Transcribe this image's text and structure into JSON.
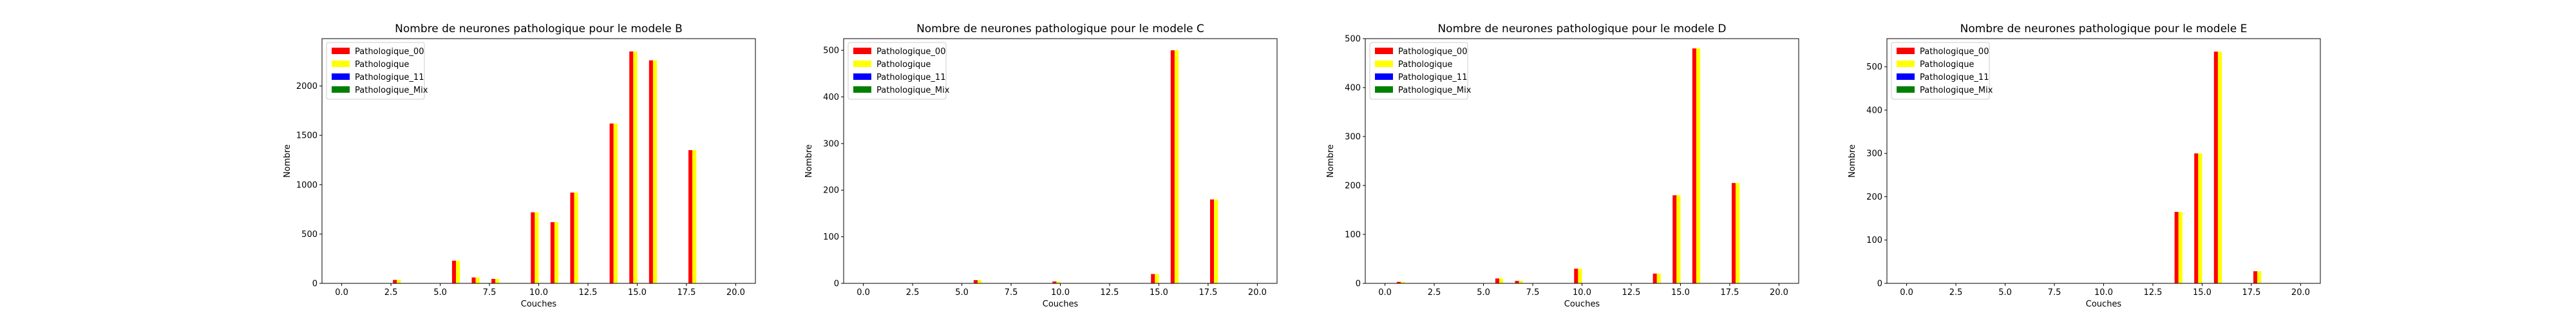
{
  "chart_data": [
    {
      "type": "bar",
      "title": "Nombre de neurones pathologique pour le modele B",
      "xlabel": "Couches",
      "ylabel": "Nombre",
      "xlim": [
        -1,
        21
      ],
      "ylim": [
        0,
        2480
      ],
      "xticks": [
        0,
        2.5,
        5,
        7.5,
        10,
        12.5,
        15,
        17.5,
        20
      ],
      "xtick_labels": [
        "0.0",
        "2.5",
        "5.0",
        "7.5",
        "10.0",
        "12.5",
        "15.0",
        "17.5",
        "20.0"
      ],
      "yticks": [
        0,
        500,
        1000,
        1500,
        2000
      ],
      "ytick_labels": [
        "0",
        "500",
        "1000",
        "1500",
        "2000"
      ],
      "legend_position": "top-left",
      "grid": false,
      "x": [
        0,
        1,
        2,
        3,
        4,
        5,
        6,
        7,
        8,
        9,
        10,
        11,
        12,
        13,
        14,
        15,
        16,
        17,
        18
      ],
      "series": [
        {
          "name": "Pathologique_00",
          "color": "#ff0000",
          "values": [
            0,
            0,
            0,
            35,
            0,
            0,
            230,
            60,
            45,
            0,
            720,
            620,
            920,
            0,
            1620,
            2350,
            2260,
            0,
            1350
          ]
        },
        {
          "name": "Pathologique",
          "color": "#ffff00",
          "values": [
            0,
            0,
            0,
            35,
            0,
            0,
            230,
            60,
            45,
            0,
            720,
            620,
            920,
            0,
            1620,
            2350,
            2260,
            0,
            1350
          ]
        },
        {
          "name": "Pathologique_11",
          "color": "#0000ff",
          "values": [
            0,
            0,
            0,
            0,
            0,
            0,
            0,
            0,
            0,
            0,
            0,
            0,
            0,
            0,
            0,
            0,
            0,
            0,
            0
          ]
        },
        {
          "name": "Pathologique_Mix",
          "color": "#008000",
          "values": [
            0,
            0,
            0,
            0,
            0,
            0,
            0,
            0,
            0,
            0,
            0,
            0,
            0,
            0,
            0,
            0,
            0,
            0,
            0
          ]
        }
      ]
    },
    {
      "type": "bar",
      "title": "Nombre de neurones pathologique pour le modele C",
      "xlabel": "Couches",
      "ylabel": "Nombre",
      "xlim": [
        -1,
        21
      ],
      "ylim": [
        0,
        525
      ],
      "xticks": [
        0,
        2.5,
        5,
        7.5,
        10,
        12.5,
        15,
        17.5,
        20
      ],
      "xtick_labels": [
        "0.0",
        "2.5",
        "5.0",
        "7.5",
        "10.0",
        "12.5",
        "15.0",
        "17.5",
        "20.0"
      ],
      "yticks": [
        0,
        100,
        200,
        300,
        400,
        500
      ],
      "ytick_labels": [
        "0",
        "100",
        "200",
        "300",
        "400",
        "500"
      ],
      "legend_position": "top-left",
      "grid": false,
      "x": [
        0,
        1,
        2,
        3,
        4,
        5,
        6,
        7,
        8,
        9,
        10,
        11,
        12,
        13,
        14,
        15,
        16,
        17,
        18
      ],
      "series": [
        {
          "name": "Pathologique_00",
          "color": "#ff0000",
          "values": [
            0,
            0,
            0,
            0,
            0,
            0,
            7,
            0,
            0,
            0,
            4,
            0,
            0,
            0,
            0,
            20,
            500,
            0,
            180
          ]
        },
        {
          "name": "Pathologique",
          "color": "#ffff00",
          "values": [
            0,
            0,
            0,
            0,
            0,
            0,
            7,
            0,
            0,
            0,
            4,
            0,
            0,
            0,
            0,
            20,
            500,
            0,
            180
          ]
        },
        {
          "name": "Pathologique_11",
          "color": "#0000ff",
          "values": [
            0,
            0,
            0,
            0,
            0,
            0,
            0,
            0,
            0,
            0,
            0,
            0,
            0,
            0,
            0,
            0,
            0,
            0,
            0
          ]
        },
        {
          "name": "Pathologique_Mix",
          "color": "#008000",
          "values": [
            0,
            0,
            0,
            0,
            0,
            0,
            0,
            0,
            0,
            0,
            0,
            0,
            0,
            0,
            0,
            0,
            0,
            0,
            0
          ]
        }
      ]
    },
    {
      "type": "bar",
      "title": "Nombre de neurones pathologique pour le modele D",
      "xlabel": "Couches",
      "ylabel": "Nombre",
      "xlim": [
        -1,
        21
      ],
      "ylim": [
        0,
        500
      ],
      "xticks": [
        0,
        2.5,
        5,
        7.5,
        10,
        12.5,
        15,
        17.5,
        20
      ],
      "xtick_labels": [
        "0.0",
        "2.5",
        "5.0",
        "7.5",
        "10.0",
        "12.5",
        "15.0",
        "17.5",
        "20.0"
      ],
      "yticks": [
        0,
        100,
        200,
        300,
        400,
        500
      ],
      "ytick_labels": [
        "0",
        "100",
        "200",
        "300",
        "400",
        "500"
      ],
      "legend_position": "top-left",
      "grid": false,
      "x": [
        0,
        1,
        2,
        3,
        4,
        5,
        6,
        7,
        8,
        9,
        10,
        11,
        12,
        13,
        14,
        15,
        16,
        17,
        18
      ],
      "series": [
        {
          "name": "Pathologique_00",
          "color": "#ff0000",
          "values": [
            0,
            3,
            0,
            0,
            0,
            0,
            10,
            5,
            0,
            0,
            30,
            0,
            0,
            0,
            20,
            180,
            480,
            0,
            205
          ]
        },
        {
          "name": "Pathologique",
          "color": "#ffff00",
          "values": [
            0,
            3,
            0,
            0,
            0,
            0,
            10,
            5,
            0,
            0,
            30,
            0,
            0,
            0,
            20,
            180,
            480,
            0,
            205
          ]
        },
        {
          "name": "Pathologique_11",
          "color": "#0000ff",
          "values": [
            0,
            0,
            0,
            0,
            0,
            0,
            0,
            0,
            0,
            0,
            0,
            0,
            0,
            0,
            0,
            0,
            0,
            0,
            0
          ]
        },
        {
          "name": "Pathologique_Mix",
          "color": "#008000",
          "values": [
            0,
            0,
            0,
            0,
            0,
            0,
            0,
            0,
            0,
            0,
            0,
            0,
            0,
            0,
            0,
            0,
            0,
            0,
            0
          ]
        }
      ]
    },
    {
      "type": "bar",
      "title": "Nombre de neurones pathologique pour le modele E",
      "xlabel": "Couches",
      "ylabel": "Nombre",
      "xlim": [
        -1,
        21
      ],
      "ylim": [
        0,
        565
      ],
      "xticks": [
        0,
        2.5,
        5,
        7.5,
        10,
        12.5,
        15,
        17.5,
        20
      ],
      "xtick_labels": [
        "0.0",
        "2.5",
        "5.0",
        "7.5",
        "10.0",
        "12.5",
        "15.0",
        "17.5",
        "20.0"
      ],
      "yticks": [
        0,
        100,
        200,
        300,
        400,
        500
      ],
      "ytick_labels": [
        "0",
        "100",
        "200",
        "300",
        "400",
        "500"
      ],
      "legend_position": "top-left",
      "grid": false,
      "x": [
        0,
        1,
        2,
        3,
        4,
        5,
        6,
        7,
        8,
        9,
        10,
        11,
        12,
        13,
        14,
        15,
        16,
        17,
        18
      ],
      "series": [
        {
          "name": "Pathologique_00",
          "color": "#ff0000",
          "values": [
            0,
            0,
            0,
            0,
            0,
            0,
            0,
            0,
            0,
            0,
            0,
            0,
            0,
            0,
            165,
            300,
            535,
            0,
            28
          ]
        },
        {
          "name": "Pathologique",
          "color": "#ffff00",
          "values": [
            0,
            0,
            0,
            0,
            0,
            0,
            0,
            0,
            0,
            0,
            0,
            0,
            0,
            0,
            165,
            300,
            535,
            0,
            28
          ]
        },
        {
          "name": "Pathologique_11",
          "color": "#0000ff",
          "values": [
            0,
            0,
            0,
            0,
            0,
            0,
            0,
            0,
            0,
            0,
            0,
            0,
            0,
            0,
            0,
            0,
            0,
            0,
            0
          ]
        },
        {
          "name": "Pathologique_Mix",
          "color": "#008000",
          "values": [
            0,
            0,
            0,
            0,
            0,
            0,
            0,
            0,
            0,
            0,
            0,
            0,
            0,
            0,
            0,
            0,
            0,
            0,
            0
          ]
        }
      ]
    }
  ]
}
